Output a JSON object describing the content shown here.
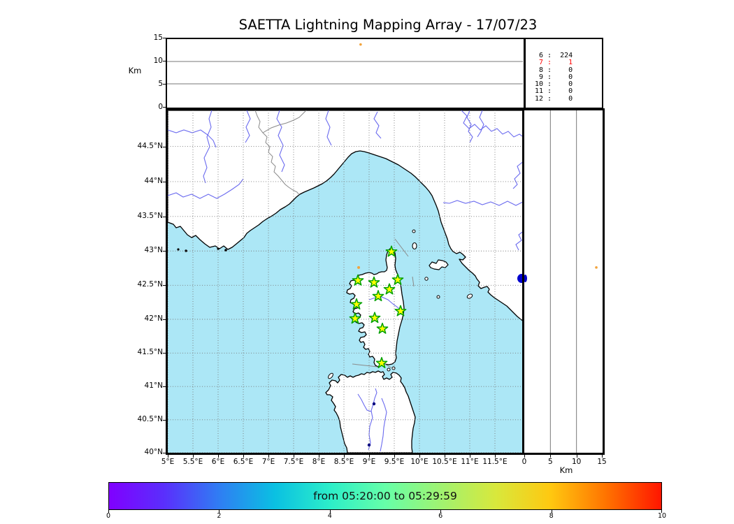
{
  "title": "SAETTA Lightning Mapping Array - 17/07/23",
  "top_panel": {
    "ylabel": "Km",
    "yticks": [
      {
        "label": "15",
        "km": 15
      },
      {
        "label": "10",
        "km": 10
      },
      {
        "label": "5",
        "km": 5
      },
      {
        "label": "0",
        "km": 0
      }
    ],
    "grid_km": [
      10,
      5
    ]
  },
  "stats_panel": {
    "rows": [
      {
        "n": "6",
        "v": "224",
        "red": false
      },
      {
        "n": "7",
        "v": "1",
        "red": true
      },
      {
        "n": "8",
        "v": "0",
        "red": false
      },
      {
        "n": "9",
        "v": "0",
        "red": false
      },
      {
        "n": "10",
        "v": "0",
        "red": false
      },
      {
        "n": "11",
        "v": "0",
        "red": false
      },
      {
        "n": "12",
        "v": "0",
        "red": false
      }
    ]
  },
  "map_panel": {
    "lat_ticks": [
      {
        "label": "44.5°N",
        "lat": 44.5
      },
      {
        "label": "44°N",
        "lat": 44
      },
      {
        "label": "43.5°N",
        "lat": 43.5
      },
      {
        "label": "43°N",
        "lat": 43
      },
      {
        "label": "42.5°N",
        "lat": 42.5
      },
      {
        "label": "42°N",
        "lat": 42
      },
      {
        "label": "41.5°N",
        "lat": 41.5
      },
      {
        "label": "41°N",
        "lat": 41
      },
      {
        "label": "40.5°N",
        "lat": 40.5
      },
      {
        "label": "40°N",
        "lat": 40
      }
    ],
    "lon_ticks": [
      {
        "label": "5°E",
        "lon": 5
      },
      {
        "label": "5.5°E",
        "lon": 5.5
      },
      {
        "label": "6°E",
        "lon": 6
      },
      {
        "label": "6.5°E",
        "lon": 6.5
      },
      {
        "label": "7°E",
        "lon": 7
      },
      {
        "label": "7.5°E",
        "lon": 7.5
      },
      {
        "label": "8°E",
        "lon": 8
      },
      {
        "label": "8.5°E",
        "lon": 8.5
      },
      {
        "label": "9°E",
        "lon": 9
      },
      {
        "label": "9.5°E",
        "lon": 9.5
      },
      {
        "label": "10°E",
        "lon": 10
      },
      {
        "label": "10.5°E",
        "lon": 10.5
      },
      {
        "label": "11°E",
        "lon": 11
      },
      {
        "label": "11.5°E",
        "lon": 11.5
      }
    ]
  },
  "right_panel": {
    "xlabel": "Km",
    "xticks": [
      {
        "label": "0",
        "km": 0
      },
      {
        "label": "5",
        "km": 5
      },
      {
        "label": "10",
        "km": 10
      },
      {
        "label": "15",
        "km": 15
      }
    ],
    "grid_km": [
      5,
      10
    ]
  },
  "colorbar": {
    "label": "from 05:20:00 to 05:29:59",
    "ticks": [
      {
        "label": "0",
        "v": 0
      },
      {
        "label": "2",
        "v": 2
      },
      {
        "label": "4",
        "v": 4
      },
      {
        "label": "6",
        "v": 6
      },
      {
        "label": "8",
        "v": 8
      },
      {
        "label": "10",
        "v": 10
      }
    ],
    "gradient": [
      "#8000ff",
      "#5a2ffc",
      "#2f7ef3",
      "#0ac0e2",
      "#2ceec9",
      "#66ffa8",
      "#a0f271",
      "#d8e83c",
      "#ffc810",
      "#ff7300",
      "#ff1600"
    ]
  },
  "chart_data": [
    {
      "type": "scatter",
      "name": "time-height-panel",
      "ylabel": "Km",
      "ylim": [
        0,
        15
      ],
      "yticks": [
        0,
        5,
        10,
        15
      ],
      "x_range_time": [
        "05:20:00",
        "05:29:59"
      ],
      "points": [
        {
          "t_frac": 0.545,
          "alt_km": 13.8,
          "color": "#f2a33c"
        }
      ]
    },
    {
      "type": "scatter",
      "name": "map-panel",
      "lon_range": [
        5,
        12.08
      ],
      "lat_range": [
        40,
        45.05
      ],
      "grid": true,
      "stations": [
        {
          "lon": 9.444,
          "lat": 42.99
        },
        {
          "lon": 8.778,
          "lat": 42.57
        },
        {
          "lon": 9.097,
          "lat": 42.54
        },
        {
          "lon": 9.569,
          "lat": 42.58
        },
        {
          "lon": 9.403,
          "lat": 42.44
        },
        {
          "lon": 9.181,
          "lat": 42.34
        },
        {
          "lon": 8.75,
          "lat": 42.22
        },
        {
          "lon": 9.625,
          "lat": 42.12
        },
        {
          "lon": 8.722,
          "lat": 42.01
        },
        {
          "lon": 9.111,
          "lat": 42.02
        },
        {
          "lon": 9.264,
          "lat": 41.86
        },
        {
          "lon": 9.25,
          "lat": 41.35
        }
      ],
      "sources": [
        {
          "lon": 8.792,
          "lat": 42.76,
          "alt_km": 13.8,
          "count": 1,
          "color": "#f2a33c",
          "shape": "dot"
        },
        {
          "lon": 12.028,
          "lat": 42.6,
          "alt_km": 0.3,
          "count": 224,
          "color": "#0000cd",
          "shape": "blob"
        }
      ]
    },
    {
      "type": "scatter",
      "name": "height-latitude-panel",
      "xlabel": "Km",
      "xlim": [
        0,
        15
      ],
      "xticks": [
        0,
        5,
        10,
        15
      ],
      "points": [
        {
          "alt_km": 13.8,
          "lat": 42.76,
          "color": "#f2a33c"
        }
      ]
    },
    {
      "type": "colorbar",
      "name": "time-colorbar",
      "range": [
        0,
        10
      ],
      "ticks": [
        0,
        2,
        4,
        6,
        8,
        10
      ],
      "label": "from 05:20:00 to 05:29:59"
    },
    {
      "type": "table",
      "name": "sources-per-station-count",
      "columns": [
        "n_stations",
        "n_sources"
      ],
      "rows": [
        [
          6,
          224
        ],
        [
          7,
          1
        ],
        [
          8,
          0
        ],
        [
          9,
          0
        ],
        [
          10,
          0
        ],
        [
          11,
          0
        ],
        [
          12,
          0
        ]
      ],
      "highlight_n_stations": 7
    }
  ]
}
